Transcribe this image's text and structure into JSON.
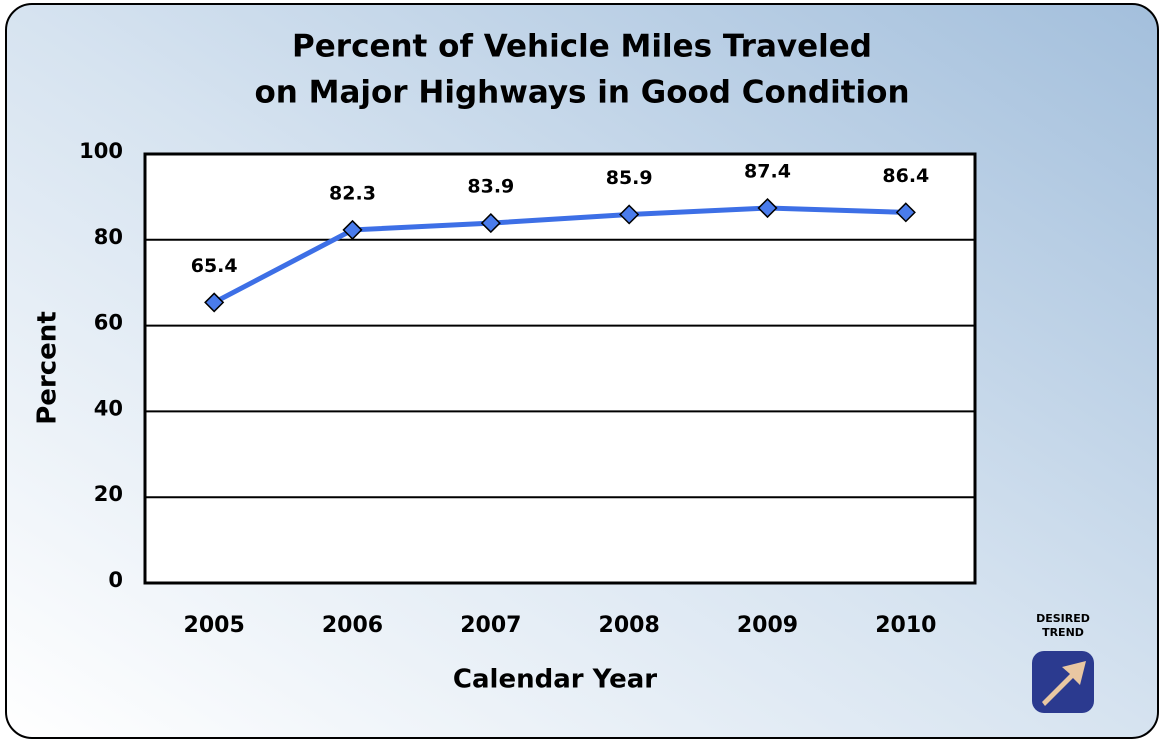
{
  "chart_data": {
    "type": "line",
    "title": [
      "Percent of Vehicle Miles Traveled",
      "on Major Highways in Good Condition"
    ],
    "x_label": "Calendar Year",
    "y_label": "Percent",
    "categories": [
      "2005",
      "2006",
      "2007",
      "2008",
      "2009",
      "2010"
    ],
    "values": [
      65.4,
      82.3,
      83.9,
      85.9,
      87.4,
      86.4
    ],
    "color": "#3d6fe6",
    "ylim": [
      0,
      100
    ],
    "yticks": [
      0,
      20,
      40,
      60,
      80,
      100
    ],
    "grid": true,
    "annotation": [
      "DESIRED",
      "TREND"
    ]
  }
}
